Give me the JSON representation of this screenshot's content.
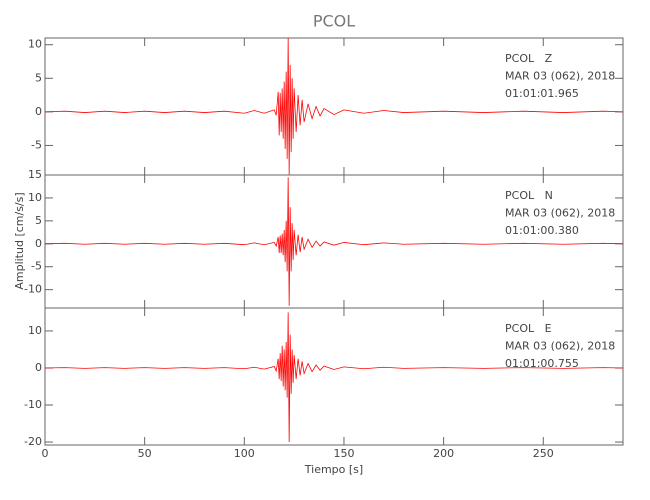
{
  "title": "PCOL",
  "xlabel": "Tiempo [s]",
  "ylabel": "Amplitud [cm/s/s]",
  "xlim": [
    0,
    290
  ],
  "xticks": [
    0,
    50,
    100,
    150,
    200,
    250
  ],
  "chart_data": [
    {
      "type": "line",
      "color": "#ff0000",
      "annotations": [
        "PCOL   Z",
        "MAR 03 (062), 2018",
        "01:01:01.965"
      ],
      "ylim": [
        -9.4,
        11
      ],
      "yticks": [
        -5,
        0,
        5,
        10
      ],
      "x": [
        0,
        10,
        20,
        30,
        40,
        50,
        60,
        70,
        80,
        90,
        100,
        105,
        110,
        115,
        116,
        117,
        117.5,
        118,
        118.5,
        119,
        119.5,
        120,
        120.5,
        121,
        121.5,
        122,
        122.5,
        123,
        123.5,
        124,
        124.5,
        125,
        126,
        127,
        128,
        129,
        130,
        132,
        134,
        136,
        138,
        140,
        145,
        150,
        160,
        170,
        180,
        200,
        220,
        240,
        260,
        280,
        290
      ],
      "values": [
        0,
        0.1,
        -0.1,
        0.1,
        -0.1,
        0.1,
        -0.1,
        0.1,
        -0.1,
        0.1,
        -0.2,
        0.2,
        -0.2,
        0.3,
        -0.5,
        3,
        -3.5,
        2.8,
        -3,
        3.5,
        -4,
        4.5,
        -5.5,
        6,
        -7,
        11,
        -9.4,
        7,
        -6,
        5,
        -4,
        3.5,
        -3,
        2.5,
        -2,
        1.8,
        -1.5,
        1.2,
        -1,
        0.8,
        -0.6,
        0.5,
        -0.4,
        0.3,
        -0.2,
        0.2,
        -0.1,
        0.1,
        -0.1,
        0.1,
        -0.1,
        0.1,
        0
      ]
    },
    {
      "type": "line",
      "color": "#ff0000",
      "annotations": [
        "PCOL   N",
        "MAR 03 (062), 2018",
        "01:01:00.380"
      ],
      "ylim": [
        -14,
        15
      ],
      "yticks": [
        -10,
        -5,
        0,
        5,
        10,
        15
      ],
      "x": [
        0,
        10,
        20,
        30,
        40,
        50,
        60,
        70,
        80,
        90,
        100,
        105,
        110,
        115,
        116,
        117,
        117.5,
        118,
        118.5,
        119,
        119.5,
        120,
        120.5,
        121,
        121.5,
        122,
        122.5,
        123,
        123.5,
        124,
        124.5,
        125,
        126,
        127,
        128,
        129,
        130,
        132,
        134,
        136,
        138,
        140,
        145,
        150,
        160,
        170,
        180,
        200,
        220,
        240,
        260,
        280,
        290
      ],
      "values": [
        0,
        0.1,
        -0.1,
        0.1,
        -0.1,
        0.1,
        -0.1,
        0.1,
        -0.1,
        0.1,
        -0.2,
        0.2,
        -0.2,
        0.3,
        -0.5,
        1.5,
        -2,
        1.8,
        -2,
        2.2,
        -2.5,
        3,
        -4,
        5,
        -6,
        14.5,
        -13.5,
        8,
        -6,
        4.5,
        -3.5,
        3,
        -2.5,
        2,
        -1.8,
        1.5,
        -1.2,
        1,
        -0.8,
        0.6,
        -0.5,
        0.4,
        -0.3,
        0.3,
        -0.2,
        0.2,
        -0.1,
        0.1,
        -0.1,
        0.1,
        -0.1,
        0.1,
        0
      ]
    },
    {
      "type": "line",
      "color": "#ff0000",
      "annotations": [
        "PCOL   E",
        "MAR 03 (062), 2018",
        "01:01:00.755"
      ],
      "ylim": [
        -20.8,
        16.2
      ],
      "yticks": [
        -20,
        -10,
        0,
        10
      ],
      "x": [
        0,
        10,
        20,
        30,
        40,
        50,
        60,
        70,
        80,
        90,
        100,
        105,
        110,
        115,
        116,
        117,
        117.5,
        118,
        118.5,
        119,
        119.5,
        120,
        120.5,
        121,
        121.5,
        122,
        122.5,
        123,
        123.5,
        124,
        124.5,
        125,
        126,
        127,
        128,
        129,
        130,
        132,
        134,
        136,
        138,
        140,
        145,
        150,
        160,
        170,
        180,
        200,
        220,
        240,
        260,
        280,
        290
      ],
      "values": [
        0,
        0.1,
        -0.1,
        0.1,
        -0.1,
        0.1,
        -0.1,
        0.1,
        -0.1,
        0.1,
        -0.2,
        0.2,
        -0.3,
        0.4,
        -0.8,
        2.5,
        -3,
        4,
        -3.5,
        6,
        -5,
        5,
        -6,
        7,
        -8,
        15,
        -20,
        9,
        -7,
        5,
        -4,
        3.5,
        -3,
        2.5,
        -2,
        1.8,
        -1.5,
        1.2,
        -1,
        0.8,
        -0.6,
        0.5,
        -0.4,
        0.3,
        -0.2,
        0.2,
        -0.1,
        0.1,
        -0.1,
        0.1,
        -0.1,
        0.1,
        0
      ]
    }
  ]
}
